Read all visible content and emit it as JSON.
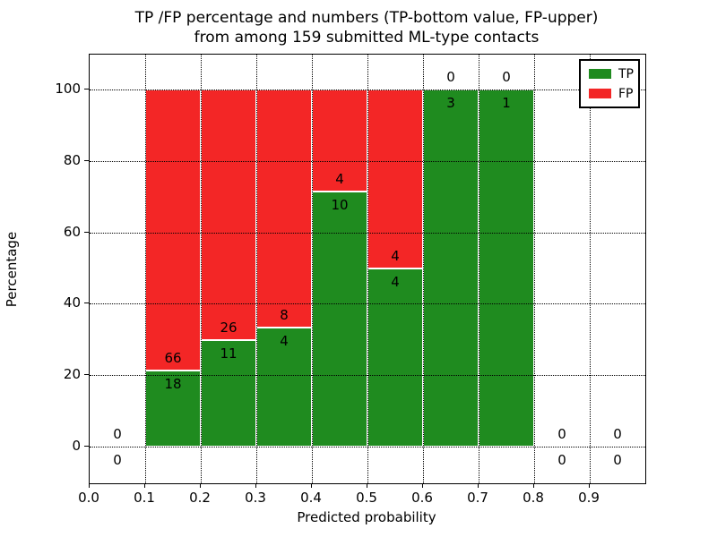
{
  "chart_data": {
    "type": "bar",
    "stacked": true,
    "normalized_to_percent": true,
    "title_line1": "TP /FP percentage and numbers (TP-bottom value, FP-upper)",
    "title_line2": "from among 159 submitted ML-type contacts",
    "xlabel": "Predicted probability",
    "ylabel": "Percentage",
    "xlim": [
      0.0,
      1.0
    ],
    "ylim": [
      -10,
      110
    ],
    "x_tick_labels": [
      "0.0",
      "0.1",
      "0.2",
      "0.3",
      "0.4",
      "0.5",
      "0.6",
      "0.7",
      "0.8",
      "0.9"
    ],
    "y_tick_values": [
      0,
      20,
      40,
      60,
      80,
      100
    ],
    "grid": "dotted",
    "background": "#ffffff",
    "bin_width": 0.1,
    "total_contacts": 159,
    "legend": {
      "position": "upper-right",
      "entries": [
        {
          "label": "TP",
          "color": "#1f8b1f"
        },
        {
          "label": "FP",
          "color": "#f32626"
        }
      ]
    },
    "bins": [
      {
        "x_start": 0.0,
        "x_end": 0.1,
        "tp": 0,
        "fp": 0
      },
      {
        "x_start": 0.1,
        "x_end": 0.2,
        "tp": 18,
        "fp": 66
      },
      {
        "x_start": 0.2,
        "x_end": 0.3,
        "tp": 11,
        "fp": 26
      },
      {
        "x_start": 0.3,
        "x_end": 0.4,
        "tp": 4,
        "fp": 8
      },
      {
        "x_start": 0.4,
        "x_end": 0.5,
        "tp": 10,
        "fp": 4
      },
      {
        "x_start": 0.5,
        "x_end": 0.6,
        "tp": 4,
        "fp": 4
      },
      {
        "x_start": 0.6,
        "x_end": 0.7,
        "tp": 3,
        "fp": 0
      },
      {
        "x_start": 0.7,
        "x_end": 0.8,
        "tp": 1,
        "fp": 0
      },
      {
        "x_start": 0.8,
        "x_end": 0.9,
        "tp": 0,
        "fp": 0
      },
      {
        "x_start": 0.9,
        "x_end": 1.0,
        "tp": 0,
        "fp": 0
      }
    ]
  }
}
